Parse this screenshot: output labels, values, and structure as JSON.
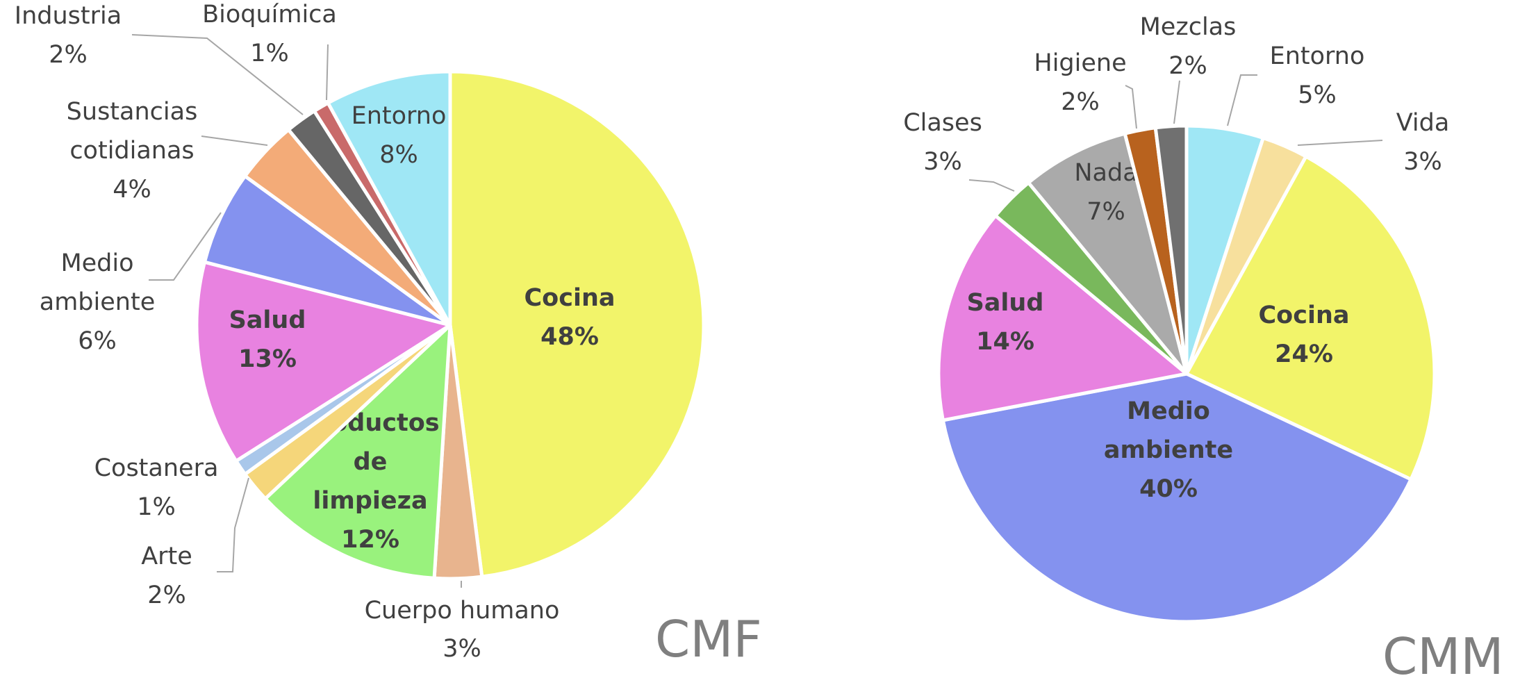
{
  "chart_data": [
    {
      "type": "pie",
      "title": "CMF",
      "slices": [
        {
          "label": "Cocina",
          "value": 48,
          "display": "48%",
          "color": "#f2f46a",
          "bold": true
        },
        {
          "label": "Cuerpo humano",
          "value": 3,
          "display": "3%",
          "color": "#e8b48e",
          "bold": false
        },
        {
          "label": "Productos de limpieza",
          "value": 12,
          "display": "12%",
          "color": "#99f27d",
          "bold": true
        },
        {
          "label": "Arte",
          "value": 2,
          "display": "2%",
          "color": "#f5d67a",
          "bold": false
        },
        {
          "label": "Costanera",
          "value": 1,
          "display": "1%",
          "color": "#a9c7ea",
          "bold": false
        },
        {
          "label": "Salud",
          "value": 13,
          "display": "13%",
          "color": "#e882e0",
          "bold": true
        },
        {
          "label": "Medio ambiente",
          "value": 6,
          "display": "6%",
          "color": "#8492ef",
          "bold": false
        },
        {
          "label": "Sustancias cotidianas",
          "value": 4,
          "display": "4%",
          "color": "#f3ab78",
          "bold": false
        },
        {
          "label": "Industria",
          "value": 2,
          "display": "2%",
          "color": "#666666",
          "bold": false
        },
        {
          "label": "Bioquímica",
          "value": 1,
          "display": "1%",
          "color": "#c96a6a",
          "bold": false
        },
        {
          "label": "Entorno",
          "value": 8,
          "display": "8%",
          "color": "#9fe7f5",
          "bold": false
        }
      ]
    },
    {
      "type": "pie",
      "title": "CMM",
      "slices": [
        {
          "label": "Entorno",
          "value": 5,
          "display": "5%",
          "color": "#9fe7f5",
          "bold": false
        },
        {
          "label": "Vida",
          "value": 3,
          "display": "3%",
          "color": "#f7e09d",
          "bold": false
        },
        {
          "label": "Cocina",
          "value": 24,
          "display": "24%",
          "color": "#f2f46a",
          "bold": true
        },
        {
          "label": "Medio ambiente",
          "value": 40,
          "display": "40%",
          "color": "#8492ef",
          "bold": true
        },
        {
          "label": "Salud",
          "value": 14,
          "display": "14%",
          "color": "#e882e0",
          "bold": true
        },
        {
          "label": "Clases",
          "value": 3,
          "display": "3%",
          "color": "#79b85c",
          "bold": false
        },
        {
          "label": "Nada",
          "value": 7,
          "display": "7%",
          "color": "#aaaaaa",
          "bold": false
        },
        {
          "label": "Higiene",
          "value": 2,
          "display": "2%",
          "color": "#b8621e",
          "bold": false
        },
        {
          "label": "Mezclas",
          "value": 2,
          "display": "2%",
          "color": "#707070",
          "bold": false
        }
      ]
    }
  ]
}
